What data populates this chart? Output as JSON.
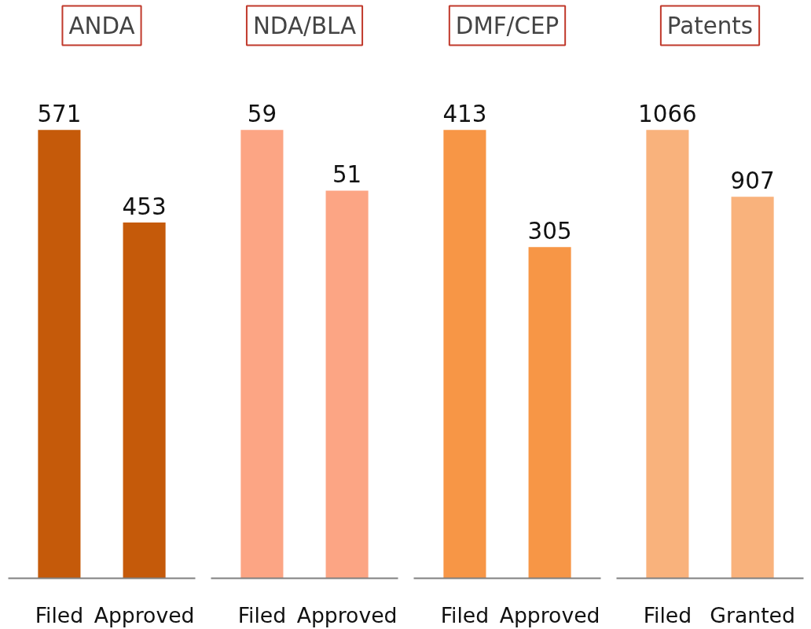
{
  "chart_data": [
    {
      "type": "bar",
      "title": "ANDA",
      "categories": [
        "Filed",
        "Approved"
      ],
      "values": [
        571,
        453
      ],
      "color": "#c55a0a",
      "data_labels": true
    },
    {
      "type": "bar",
      "title": "NDA/BLA",
      "categories": [
        "Filed",
        "Approved"
      ],
      "values": [
        59,
        51
      ],
      "color": "#fca584",
      "data_labels": true
    },
    {
      "type": "bar",
      "title": "DMF/CEP",
      "categories": [
        "Filed",
        "Approved"
      ],
      "values": [
        413,
        305
      ],
      "color": "#f79646",
      "data_labels": true
    },
    {
      "type": "bar",
      "title": "Patents",
      "categories": [
        "Filed",
        "Granted"
      ],
      "values": [
        1066,
        907
      ],
      "color": "#f9b27c",
      "data_labels": true
    }
  ]
}
